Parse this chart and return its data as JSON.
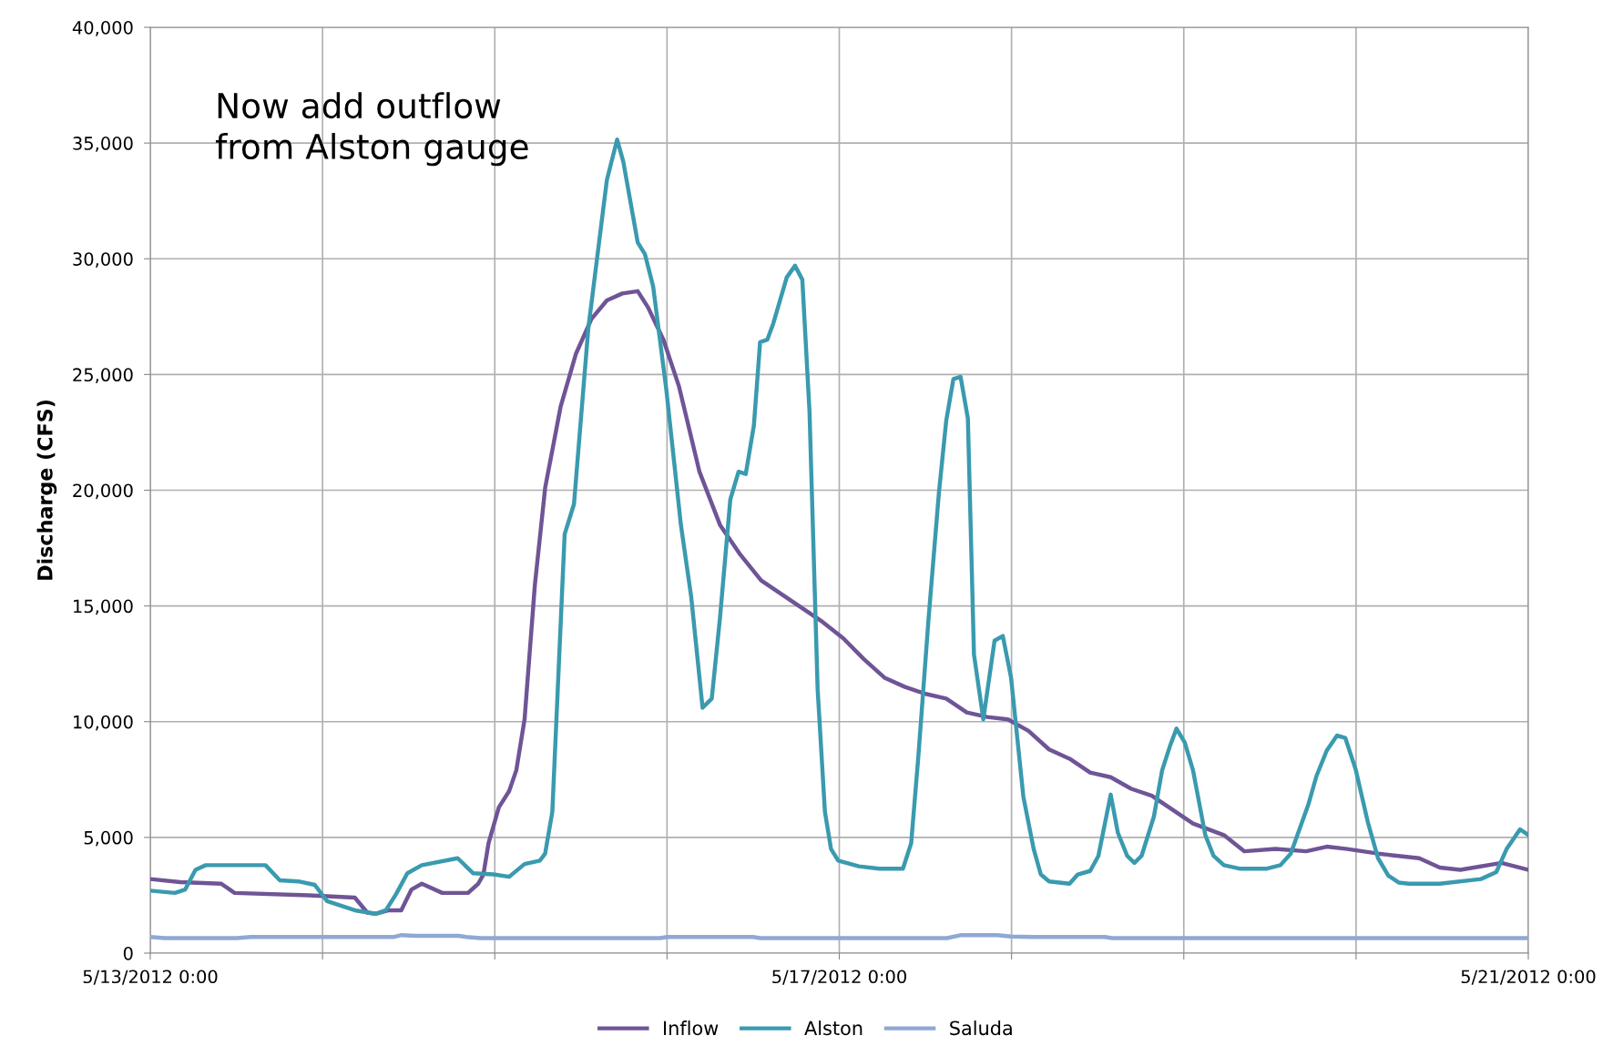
{
  "chart_data": {
    "type": "line",
    "ylabel": "Discharge (CFS)",
    "annotations": [
      "Now add outflow\nfrom Alston gauge"
    ],
    "xlim": [
      "2012-05-13T00:00",
      "2012-05-21T00:00"
    ],
    "xticks": [
      {
        "value": "2012-05-13T00:00",
        "label": "5/13/2012 0:00"
      },
      {
        "value": "2012-05-14T00:00",
        "label": null
      },
      {
        "value": "2012-05-15T00:00",
        "label": null
      },
      {
        "value": "2012-05-16T00:00",
        "label": null
      },
      {
        "value": "2012-05-17T00:00",
        "label": "5/17/2012 0:00"
      },
      {
        "value": "2012-05-18T00:00",
        "label": null
      },
      {
        "value": "2012-05-19T00:00",
        "label": null
      },
      {
        "value": "2012-05-20T00:00",
        "label": null
      },
      {
        "value": "2012-05-21T00:00",
        "label": "5/21/2012 0:00"
      }
    ],
    "ylim": [
      0,
      40000
    ],
    "yticks": [
      0,
      {
        "value": 5000,
        "label": "5,000"
      },
      {
        "value": 10000,
        "label": "10,000"
      },
      {
        "value": 15000,
        "label": "15,000"
      },
      {
        "value": 20000,
        "label": "20,000"
      },
      {
        "value": 25000,
        "label": "25,000"
      },
      {
        "value": 30000,
        "label": "30,000"
      },
      {
        "value": 35000,
        "label": "35,000"
      },
      {
        "value": 40000,
        "label": "40,000"
      }
    ],
    "grid": true,
    "legend": "bottom",
    "marker": "none",
    "line_style": "solid",
    "series": [
      {
        "name": "Inflow",
        "color": "#6f5496",
        "x": [
          "2012-05-13T00:00",
          "2012-05-13T04:10",
          "2012-05-13T09:53",
          "2012-05-13T11:45",
          "2012-05-13T22:04",
          "2012-05-14T04:30",
          "2012-05-14T06:14",
          "2012-05-14T07:23",
          "2012-05-14T09:14",
          "2012-05-14T10:58",
          "2012-05-14T12:24",
          "2012-05-14T13:50",
          "2012-05-14T16:41",
          "2012-05-14T20:16",
          "2012-05-14T21:42",
          "2012-05-14T22:25",
          "2012-05-14T23:08",
          "2012-05-15T00:34",
          "2012-05-15T02:00",
          "2012-05-15T03:00",
          "2012-05-15T04:09",
          "2012-05-15T05:35",
          "2012-05-15T07:01",
          "2012-05-15T09:10",
          "2012-05-15T11:19",
          "2012-05-15T13:28",
          "2012-05-15T15:37",
          "2012-05-15T17:46",
          "2012-05-15T19:55",
          "2012-05-15T21:21",
          "2012-05-15T23:30",
          "2012-05-16T01:39",
          "2012-05-16T04:31",
          "2012-05-16T07:23",
          "2012-05-16T10:15",
          "2012-05-16T13:07",
          "2012-05-16T15:59",
          "2012-05-16T18:51",
          "2012-05-16T21:43",
          "2012-05-17T00:34",
          "2012-05-17T03:26",
          "2012-05-17T06:18",
          "2012-05-17T09:10",
          "2012-05-17T12:02",
          "2012-05-17T14:54",
          "2012-05-17T17:46",
          "2012-05-17T20:38",
          "2012-05-17T23:30",
          "2012-05-18T02:22",
          "2012-05-18T05:14",
          "2012-05-18T08:05",
          "2012-05-18T10:57",
          "2012-05-18T13:49",
          "2012-05-18T16:41",
          "2012-05-18T19:33",
          "2012-05-18T22:25",
          "2012-05-19T01:17",
          "2012-05-19T05:35",
          "2012-05-19T08:27",
          "2012-05-19T12:45",
          "2012-05-19T17:03",
          "2012-05-19T19:55",
          "2012-05-19T22:47",
          "2012-05-20T03:04",
          "2012-05-20T08:48",
          "2012-05-20T11:40",
          "2012-05-20T14:32",
          "2012-05-20T20:16",
          "2012-05-21T00:00"
        ],
        "values": [
          3200,
          3070,
          3000,
          2600,
          2500,
          2400,
          1750,
          1700,
          1850,
          1850,
          2750,
          3000,
          2600,
          2600,
          3000,
          3400,
          4750,
          6300,
          7000,
          7900,
          10100,
          15900,
          20100,
          23600,
          25900,
          27400,
          28200,
          28500,
          28600,
          27900,
          26500,
          24500,
          20800,
          18500,
          17200,
          16100,
          15500,
          14900,
          14300,
          13600,
          12700,
          11900,
          11500,
          11200,
          11000,
          10400,
          10200,
          10100,
          9600,
          8800,
          8400,
          7800,
          7600,
          7100,
          6800,
          6200,
          5600,
          5100,
          4400,
          4500,
          4400,
          4600,
          4500,
          4300,
          4100,
          3700,
          3600,
          3900,
          3600
        ]
      },
      {
        "name": "Alston",
        "color": "#3a9aaf",
        "x": [
          "2012-05-13T00:00",
          "2012-05-13T03:26",
          "2012-05-13T04:52",
          "2012-05-13T06:18",
          "2012-05-13T07:44",
          "2012-05-13T16:03",
          "2012-05-13T18:03",
          "2012-05-13T20:38",
          "2012-05-13T22:55",
          "2012-05-14T00:38",
          "2012-05-14T04:30",
          "2012-05-14T07:23",
          "2012-05-14T08:49",
          "2012-05-14T10:15",
          "2012-05-14T11:49",
          "2012-05-14T13:50",
          "2012-05-14T18:50",
          "2012-05-14T21:00",
          "2012-05-14T23:51",
          "2012-05-15T02:00",
          "2012-05-15T04:09",
          "2012-05-15T06:18",
          "2012-05-15T07:01",
          "2012-05-15T08:01",
          "2012-05-15T09:44",
          "2012-05-15T11:02",
          "2012-05-15T13:02",
          "2012-05-15T15:37",
          "2012-05-15T17:03",
          "2012-05-15T17:54",
          "2012-05-15T19:55",
          "2012-05-15T20:55",
          "2012-05-15T22:04",
          "2012-05-15T23:55",
          "2012-05-16T01:56",
          "2012-05-16T03:22",
          "2012-05-16T04:57",
          "2012-05-16T06:14",
          "2012-05-16T07:23",
          "2012-05-16T08:49",
          "2012-05-16T09:58",
          "2012-05-16T10:58",
          "2012-05-16T12:06",
          "2012-05-16T12:58",
          "2012-05-16T13:58",
          "2012-05-16T14:48",
          "2012-05-16T16:41",
          "2012-05-16T17:50",
          "2012-05-16T18:51",
          "2012-05-16T19:51",
          "2012-05-16T20:59",
          "2012-05-16T22:00",
          "2012-05-16T22:51",
          "2012-05-16T23:51",
          "2012-05-17T02:43",
          "2012-05-17T05:35",
          "2012-05-17T08:52",
          "2012-05-17T10:01",
          "2012-05-17T11:01",
          "2012-05-17T12:27",
          "2012-05-17T13:53",
          "2012-05-17T14:54",
          "2012-05-17T15:54",
          "2012-05-17T16:54",
          "2012-05-17T17:55",
          "2012-05-17T18:46",
          "2012-05-17T20:04",
          "2012-05-17T21:38",
          "2012-05-17T22:47",
          "2012-05-17T23:56",
          "2012-05-18T01:39",
          "2012-05-18T03:05",
          "2012-05-18T04:05",
          "2012-05-18T05:14",
          "2012-05-18T08:05",
          "2012-05-18T09:14",
          "2012-05-18T10:57",
          "2012-05-18T12:06",
          "2012-05-18T13:49",
          "2012-05-18T14:49",
          "2012-05-18T16:07",
          "2012-05-18T17:07",
          "2012-05-18T18:07",
          "2012-05-18T19:50",
          "2012-05-18T20:59",
          "2012-05-18T22:08",
          "2012-05-18T22:59",
          "2012-05-19T00:08",
          "2012-05-19T01:17",
          "2012-05-19T03:00",
          "2012-05-19T04:09",
          "2012-05-19T05:35",
          "2012-05-19T07:44",
          "2012-05-19T11:36",
          "2012-05-19T13:28",
          "2012-05-19T14:54",
          "2012-05-19T17:20",
          "2012-05-19T18:29",
          "2012-05-19T19:55",
          "2012-05-19T21:21",
          "2012-05-19T22:30",
          "2012-05-19T23:56",
          "2012-05-20T01:39",
          "2012-05-20T03:04",
          "2012-05-20T04:30",
          "2012-05-20T05:56",
          "2012-05-20T07:22",
          "2012-05-20T11:40",
          "2012-05-20T17:24",
          "2012-05-20T19:32",
          "2012-05-20T20:59",
          "2012-05-20T22:51",
          "2012-05-21T00:00"
        ],
        "values": [
          2700,
          2600,
          2750,
          3600,
          3800,
          3800,
          3150,
          3100,
          2950,
          2250,
          1850,
          1700,
          1850,
          2550,
          3450,
          3800,
          4100,
          3450,
          3400,
          3300,
          3850,
          4000,
          4300,
          6100,
          18100,
          19400,
          27000,
          33400,
          35150,
          34200,
          30700,
          30200,
          28800,
          24300,
          18500,
          15400,
          10600,
          11000,
          14500,
          19600,
          20800,
          20700,
          22800,
          26400,
          26500,
          27200,
          29200,
          29700,
          29100,
          23400,
          11400,
          6100,
          4500,
          4000,
          3750,
          3650,
          3650,
          4750,
          8500,
          14500,
          19900,
          23000,
          24800,
          24900,
          23100,
          12900,
          10100,
          13500,
          13700,
          11900,
          6750,
          4500,
          3400,
          3100,
          3000,
          3400,
          3550,
          4200,
          6850,
          5200,
          4200,
          3900,
          4200,
          5900,
          7900,
          9000,
          9700,
          9100,
          7900,
          5100,
          4200,
          3800,
          3650,
          3650,
          3800,
          4300,
          6400,
          7650,
          8750,
          9400,
          9300,
          7950,
          5650,
          4100,
          3350,
          3050,
          3000,
          3000,
          3200,
          3500,
          4500,
          5350,
          5100
        ]
      },
      {
        "name": "Saluda",
        "color": "#8fa8d4",
        "x": [
          "2012-05-13T00:00",
          "2012-05-13T02:00",
          "2012-05-13T12:00",
          "2012-05-13T14:00",
          "2012-05-14T10:00",
          "2012-05-14T11:00",
          "2012-05-14T13:00",
          "2012-05-14T19:00",
          "2012-05-14T20:00",
          "2012-05-14T22:00",
          "2012-05-15T23:00",
          "2012-05-16T00:00",
          "2012-05-16T12:00",
          "2012-05-16T13:00",
          "2012-05-17T15:00",
          "2012-05-17T17:00",
          "2012-05-17T22:00",
          "2012-05-18T00:00",
          "2012-05-18T03:00",
          "2012-05-18T13:00",
          "2012-05-18T14:00",
          "2012-05-21T00:00"
        ],
        "values": [
          700,
          650,
          650,
          700,
          700,
          780,
          750,
          750,
          700,
          650,
          650,
          700,
          700,
          650,
          650,
          780,
          780,
          720,
          700,
          700,
          650,
          650
        ]
      }
    ]
  }
}
